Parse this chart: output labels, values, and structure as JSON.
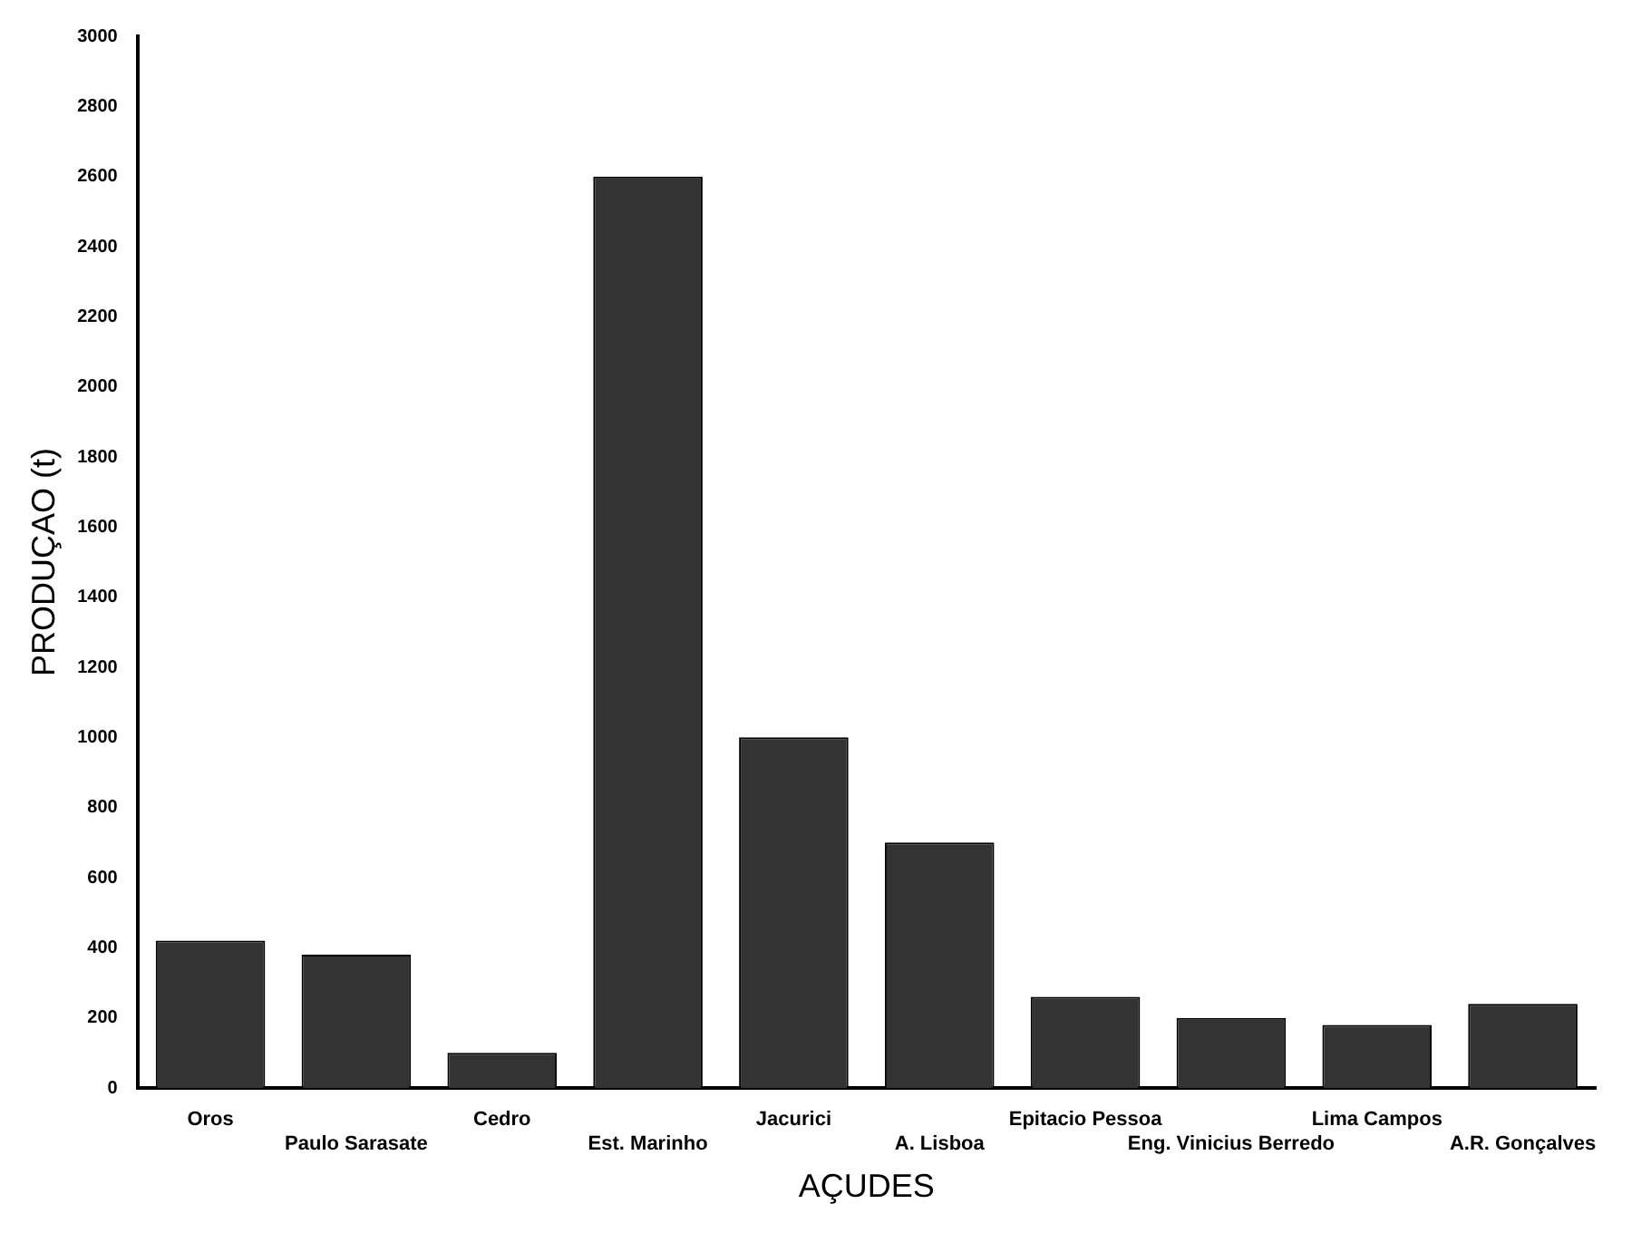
{
  "chart_data": {
    "type": "bar",
    "xlabel": "AÇUDES",
    "ylabel": "PRODUÇAO (t)",
    "categories": [
      "Oros",
      "Paulo Sarasate",
      "Cedro",
      "Est. Marinho",
      "Jacurici",
      "A. Lisboa",
      "Epitacio Pessoa",
      "Eng. Vinicius Berredo",
      "Lima Campos",
      "A.R. Gonçalves"
    ],
    "values": [
      420,
      380,
      100,
      2600,
      1000,
      700,
      260,
      200,
      180,
      240
    ],
    "color": "#333333",
    "ylim": [
      0,
      3000
    ],
    "yticks": [
      0,
      200,
      400,
      600,
      800,
      1000,
      1200,
      1400,
      1600,
      1800,
      2000,
      2200,
      2400,
      2600,
      2800,
      3000
    ],
    "grid": false,
    "legend": false
  }
}
